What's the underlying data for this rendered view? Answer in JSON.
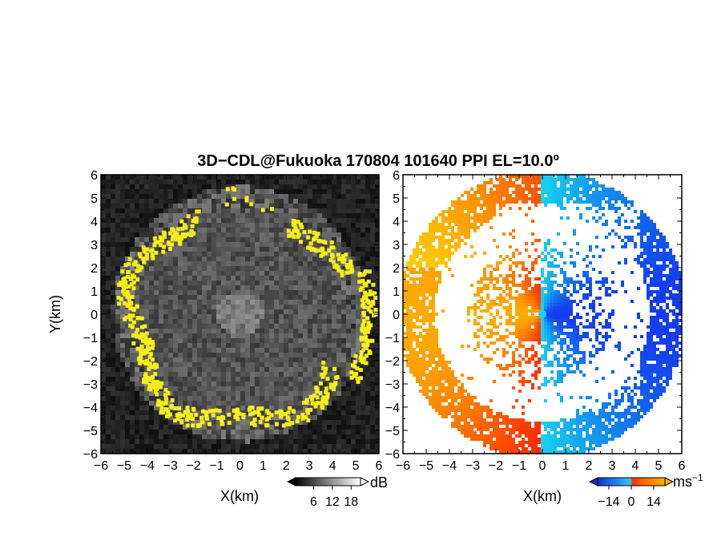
{
  "chart_data": [
    {
      "type": "heatmap",
      "panel": "left",
      "title": "3D−CDL@Fukuoka 170804 101640 PPI EL=10.0º",
      "xlabel": "X(km)",
      "ylabel": "Y(km)",
      "xlim": [
        -6,
        6
      ],
      "ylim": [
        -6,
        6
      ],
      "xticks": [
        "−6",
        "−5",
        "−4",
        "−3",
        "−2",
        "−1",
        "0",
        "1",
        "2",
        "3",
        "4",
        "5",
        "6"
      ],
      "yticks": [
        "−6",
        "−5",
        "−4",
        "−3",
        "−2",
        "−1",
        "0",
        "1",
        "2",
        "3",
        "4",
        "5",
        "6"
      ],
      "colorbar": {
        "unit": "dB",
        "ticks": [
          "6",
          "12",
          "18"
        ],
        "tick_values": [
          6,
          12,
          18
        ],
        "range": [
          0,
          21
        ],
        "colors": [
          "#000000",
          "#ffffff"
        ],
        "extend": "both"
      },
      "data_range_km": 5.5,
      "highlight_color": "#f5ee1b"
    },
    {
      "type": "heatmap",
      "panel": "right",
      "xlabel": "X(km)",
      "xlim": [
        -6,
        6
      ],
      "ylim": [
        -6,
        6
      ],
      "xticks": [
        "−6",
        "−5",
        "−4",
        "−3",
        "−2",
        "−1",
        "0",
        "1",
        "2",
        "3",
        "4",
        "5",
        "6"
      ],
      "yticks": [
        "−6",
        "−5",
        "−4",
        "−3",
        "−2",
        "−1",
        "0",
        "1",
        "2",
        "3",
        "4",
        "5",
        "6"
      ],
      "colorbar": {
        "unit": "ms",
        "unit_exp": "−1",
        "ticks": [
          "−14",
          "0",
          "14"
        ],
        "tick_values": [
          -14,
          0,
          14
        ],
        "range": [
          -21,
          21
        ],
        "colors": [
          "#0a2fd1",
          "#1e7bf0",
          "#38c4f5",
          "#ff3300",
          "#ff7a00",
          "#ffb000"
        ],
        "extend": "both"
      },
      "data_range_km": 6.0,
      "center_marker_color": "#22d3ee"
    }
  ]
}
